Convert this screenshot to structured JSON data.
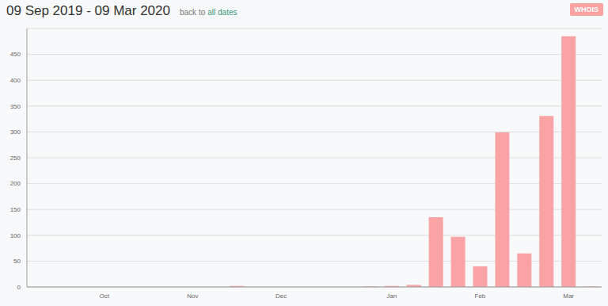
{
  "chart_data": {
    "type": "bar",
    "title": "09 Sep 2019 - 09 Mar 2020",
    "subtitle": "back to",
    "link": "all dates",
    "badge": "WHOIS",
    "categories": [
      null,
      null,
      null,
      "Oct",
      null,
      null,
      null,
      "Nov",
      null,
      null,
      null,
      "Dec",
      null,
      null,
      null,
      null,
      "Jan",
      null,
      null,
      null,
      "Feb",
      null,
      null,
      null,
      "Mar",
      null
    ],
    "values": [
      0,
      0,
      0,
      0,
      0,
      0,
      0,
      0,
      0,
      2,
      0,
      0,
      0,
      0,
      0,
      1,
      2,
      4,
      135,
      97,
      40,
      299,
      65,
      331,
      485,
      1
    ],
    "color": "#f9a3a4",
    "ylim": [
      0,
      500
    ],
    "yticks": [
      0,
      50,
      100,
      150,
      200,
      250,
      300,
      350,
      400,
      450
    ],
    "grid": true
  }
}
